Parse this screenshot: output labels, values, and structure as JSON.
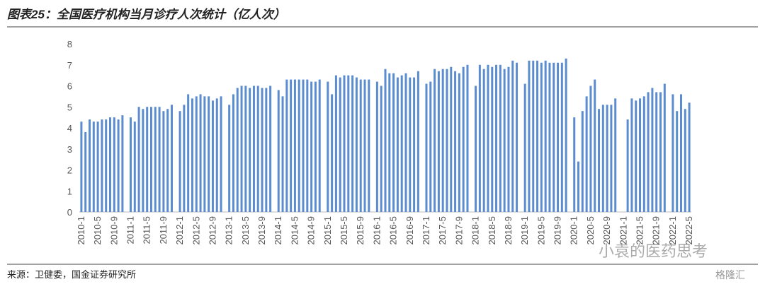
{
  "header": {
    "title": "图表25：全国医疗机构当月诊疗人次统计（亿人次）"
  },
  "footer": {
    "source": "来源：卫健委，国金证券研究所"
  },
  "watermarks": [
    "小袁的医药思考",
    "格隆汇"
  ],
  "chart_data": {
    "type": "bar",
    "color": "#5b8ccf",
    "categories": [
      "2010-1",
      null,
      null,
      null,
      "2010-5",
      null,
      null,
      null,
      "2010-9",
      null,
      null,
      null,
      "2011-1",
      null,
      null,
      null,
      "2011-5",
      null,
      null,
      null,
      "2011-9",
      null,
      null,
      null,
      "2012-1",
      null,
      null,
      null,
      "2012-5",
      null,
      null,
      null,
      "2012-9",
      null,
      null,
      null,
      "2013-1",
      null,
      null,
      null,
      "2013-5",
      null,
      null,
      null,
      "2013-9",
      null,
      null,
      null,
      "2014-1",
      null,
      null,
      null,
      "2014-5",
      null,
      null,
      null,
      "2014-9",
      null,
      null,
      null,
      "2015-1",
      null,
      null,
      null,
      "2015-5",
      null,
      null,
      null,
      "2015-9",
      null,
      null,
      null,
      "2016-1",
      null,
      null,
      null,
      "2016-5",
      null,
      null,
      null,
      "2016-9",
      null,
      null,
      null,
      "2017-1",
      null,
      null,
      null,
      "2017-5",
      null,
      null,
      null,
      "2017-9",
      null,
      null,
      null,
      "2018-1",
      null,
      null,
      null,
      "2018-5",
      null,
      null,
      null,
      "2018-9",
      null,
      null,
      null,
      "2019-1",
      null,
      null,
      null,
      "2019-5",
      null,
      null,
      null,
      "2019-9",
      null,
      null,
      null,
      "2020-1",
      null,
      null,
      null,
      "2020-5",
      null,
      null,
      null,
      "2020-9",
      null,
      null,
      null,
      "2021-1",
      null,
      null,
      null,
      "2021-5",
      null,
      null,
      null,
      "2021-9",
      null,
      null,
      null,
      "2022-1",
      null,
      null,
      null,
      "2022-5"
    ],
    "values": [
      4.3,
      3.8,
      4.4,
      4.3,
      4.3,
      4.4,
      4.4,
      4.5,
      4.5,
      4.4,
      4.6,
      null,
      4.5,
      4.3,
      5.0,
      4.9,
      5.0,
      5.0,
      5.0,
      5.0,
      4.8,
      4.9,
      5.1,
      null,
      4.8,
      5.1,
      5.6,
      5.4,
      5.5,
      5.6,
      5.5,
      5.5,
      5.3,
      5.4,
      5.5,
      null,
      5.1,
      5.6,
      5.9,
      6.0,
      6.0,
      5.9,
      6.0,
      6.0,
      5.9,
      5.9,
      6.0,
      null,
      5.8,
      5.5,
      6.3,
      6.3,
      6.3,
      6.3,
      6.3,
      6.3,
      6.2,
      6.2,
      6.3,
      null,
      6.2,
      5.6,
      6.5,
      6.4,
      6.5,
      6.5,
      6.5,
      6.4,
      6.3,
      6.3,
      6.3,
      null,
      6.2,
      6.0,
      6.8,
      6.6,
      6.6,
      6.4,
      6.5,
      6.6,
      6.4,
      6.4,
      6.7,
      null,
      6.1,
      6.2,
      6.8,
      6.7,
      6.8,
      6.8,
      6.9,
      6.7,
      6.6,
      6.9,
      7.0,
      null,
      6.0,
      7.0,
      6.8,
      7.0,
      6.9,
      7.0,
      7.0,
      6.8,
      6.9,
      7.2,
      7.1,
      null,
      6.1,
      7.2,
      7.2,
      7.2,
      7.1,
      7.2,
      7.1,
      7.1,
      7.1,
      7.1,
      7.3,
      null,
      4.5,
      2.4,
      4.8,
      5.5,
      6.0,
      6.3,
      4.9,
      5.1,
      5.1,
      5.1,
      5.4,
      null,
      null,
      4.4,
      5.4,
      5.3,
      5.4,
      5.5,
      5.7,
      5.9,
      5.7,
      5.7,
      6.1,
      null,
      5.6,
      4.8,
      5.6,
      4.9,
      5.2
    ],
    "ylim": [
      0,
      8
    ],
    "yticks": [
      0,
      1,
      2,
      3,
      4,
      5,
      6,
      7,
      8
    ]
  }
}
